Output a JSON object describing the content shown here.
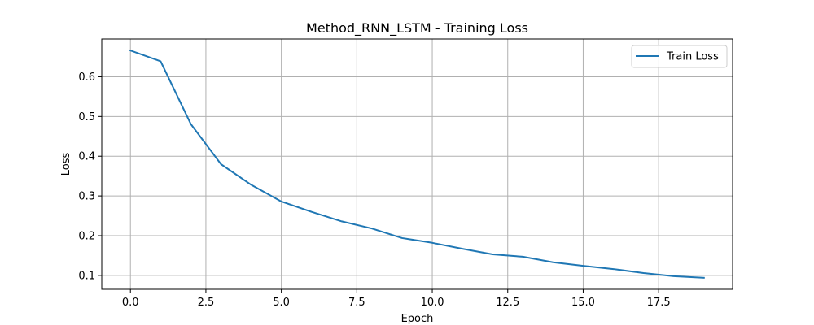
{
  "chart_data": {
    "type": "line",
    "title": "Method_RNN_LSTM - Training Loss",
    "xlabel": "Epoch",
    "ylabel": "Loss",
    "xlim": [
      -0.95,
      19.95
    ],
    "ylim": [
      0.065,
      0.695
    ],
    "xticks": [
      0,
      2.5,
      5,
      7.5,
      10,
      12.5,
      15,
      17.5
    ],
    "xtick_labels": [
      "0.0",
      "2.5",
      "5.0",
      "7.5",
      "10.0",
      "12.5",
      "15.0",
      "17.5"
    ],
    "yticks": [
      0.1,
      0.2,
      0.3,
      0.4,
      0.5,
      0.6
    ],
    "ytick_labels": [
      "0.1",
      "0.2",
      "0.3",
      "0.4",
      "0.5",
      "0.6"
    ],
    "grid": true,
    "legend_position": "top-right",
    "series": [
      {
        "name": "Train Loss",
        "color": "#1f77b4",
        "x": [
          0,
          1,
          2,
          3,
          4,
          5,
          6,
          7,
          8,
          9,
          10,
          11,
          12,
          13,
          14,
          15,
          16,
          17,
          18,
          19
        ],
        "y": [
          0.666,
          0.639,
          0.481,
          0.38,
          0.328,
          0.286,
          0.26,
          0.236,
          0.218,
          0.194,
          0.182,
          0.167,
          0.153,
          0.147,
          0.133,
          0.124,
          0.116,
          0.106,
          0.098,
          0.094
        ]
      }
    ]
  }
}
